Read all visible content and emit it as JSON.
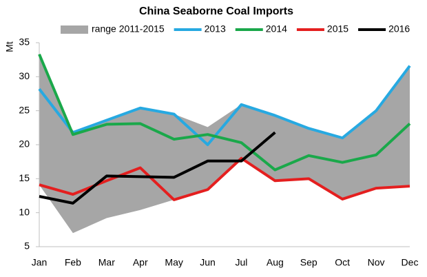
{
  "chart_data": {
    "type": "line",
    "title": "China Seaborne Coal Imports",
    "y_label": "Mt",
    "categories": [
      "Jan",
      "Feb",
      "Mar",
      "Apr",
      "May",
      "Jun",
      "Jul",
      "Aug",
      "Sep",
      "Oct",
      "Nov",
      "Dec"
    ],
    "ylim": [
      5,
      35
    ],
    "yticks": [
      5,
      10,
      15,
      20,
      25,
      30,
      35
    ],
    "grid": false,
    "legend": "top",
    "range": {
      "name": "range 2011-2015",
      "color": "#a6a6a6",
      "low": [
        14.1,
        7.0,
        9.2,
        10.4,
        11.9,
        13.4,
        18.0,
        14.7,
        15.0,
        12.0,
        13.6,
        13.9
      ],
      "high": [
        33.3,
        21.8,
        23.6,
        25.4,
        24.5,
        22.6,
        25.9,
        24.3,
        22.4,
        21.0,
        25.0,
        31.6
      ]
    },
    "series": [
      {
        "name": "2013",
        "color": "#27a9e1",
        "values": [
          28.2,
          21.8,
          23.6,
          25.4,
          24.5,
          20.0,
          25.9,
          24.3,
          22.4,
          21.0,
          25.0,
          31.6
        ]
      },
      {
        "name": "2014",
        "color": "#1aa84a",
        "values": [
          33.3,
          21.5,
          23.0,
          23.1,
          20.8,
          21.5,
          20.3,
          16.3,
          18.4,
          17.4,
          18.5,
          23.1
        ]
      },
      {
        "name": "2015",
        "color": "#e41f1f",
        "values": [
          14.1,
          12.7,
          14.7,
          16.6,
          11.9,
          13.4,
          18.0,
          14.7,
          15.0,
          12.0,
          13.6,
          13.9
        ]
      },
      {
        "name": "2016",
        "color": "#000000",
        "values": [
          12.4,
          11.4,
          15.4,
          15.3,
          15.2,
          17.6,
          17.6,
          21.8,
          null,
          null,
          null,
          null
        ]
      }
    ]
  }
}
